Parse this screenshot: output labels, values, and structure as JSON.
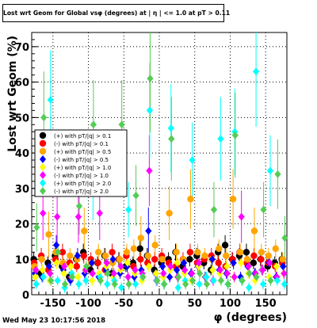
{
  "chart_data": {
    "type": "scatter",
    "title": "Lost wrt Geom for Global vsφ (degrees) at | η | <= 1.0 at pT > 0.11",
    "xlabel": "φ (degrees)",
    "ylabel": "Lost wrt Geom (%)",
    "xlim": [
      -180,
      180
    ],
    "ylim": [
      0,
      74
    ],
    "xticks": [
      "-150",
      "-100",
      "-50",
      "0",
      "50",
      "100",
      "150"
    ],
    "yticks": [
      "0",
      "10",
      "20",
      "30",
      "40",
      "50",
      "60",
      "70"
    ],
    "grid": true,
    "legend_position": "left",
    "series": [
      {
        "name": "(+) with pT/|q| > 0.1",
        "color": "#000000",
        "marker": "circle",
        "x": [
          -175,
          -165,
          -155,
          -145,
          -135,
          -125,
          -115,
          -105,
          -95,
          -85,
          -75,
          -65,
          -55,
          -45,
          -35,
          -25,
          -15,
          -5,
          5,
          15,
          25,
          35,
          45,
          55,
          65,
          75,
          85,
          95,
          105,
          115,
          125,
          135,
          145,
          155,
          165,
          175
        ],
        "y": [
          10,
          6,
          9,
          11,
          8,
          5,
          10,
          12,
          7,
          9,
          11,
          6,
          10,
          8,
          9,
          13,
          11,
          7,
          9,
          10,
          12,
          8,
          10,
          11,
          9,
          7,
          12,
          14,
          10,
          11,
          12,
          9,
          10,
          8,
          9,
          10
        ]
      },
      {
        "name": "(-) with pT/|q| > 0.1",
        "color": "#ff0000",
        "marker": "circle",
        "x": [
          -175,
          -165,
          -155,
          -145,
          -135,
          -125,
          -115,
          -105,
          -95,
          -85,
          -75,
          -65,
          -55,
          -45,
          -35,
          -25,
          -15,
          -5,
          5,
          15,
          25,
          35,
          45,
          55,
          65,
          75,
          85,
          95,
          105,
          115,
          125,
          135,
          145,
          155,
          165,
          175
        ],
        "y": [
          9,
          11,
          7,
          10,
          12,
          9,
          8,
          11,
          10,
          9,
          7,
          12,
          10,
          11,
          8,
          10,
          9,
          10,
          11,
          9,
          8,
          10,
          12,
          9,
          10,
          11,
          9,
          8,
          10,
          12,
          9,
          11,
          10,
          9,
          8,
          9
        ]
      },
      {
        "name": "(+) with pT/|q| > 0.5",
        "color": "#ffa500",
        "marker": "circle",
        "x": [
          -175,
          -165,
          -155,
          -145,
          -135,
          -125,
          -115,
          -105,
          -95,
          -85,
          -75,
          -65,
          -55,
          -45,
          -35,
          -25,
          -15,
          -5,
          5,
          15,
          25,
          35,
          45,
          55,
          65,
          75,
          85,
          95,
          105,
          115,
          125,
          135,
          145,
          155,
          165,
          175
        ],
        "y": [
          8,
          10,
          17,
          12,
          9,
          11,
          10,
          18,
          9,
          12,
          11,
          9,
          10,
          12,
          13,
          16,
          11,
          14,
          10,
          23,
          12,
          10,
          27,
          12,
          11,
          10,
          13,
          11,
          27,
          12,
          10,
          18,
          12,
          11,
          13,
          10
        ]
      },
      {
        "name": "(-) with pT/|q| > 0.5",
        "color": "#0000ff",
        "marker": "diamond",
        "x": [
          -175,
          -165,
          -155,
          -145,
          -135,
          -125,
          -115,
          -105,
          -95,
          -85,
          -75,
          -65,
          -55,
          -45,
          -35,
          -25,
          -15,
          -5,
          5,
          15,
          25,
          35,
          45,
          55,
          65,
          75,
          85,
          95,
          105,
          115,
          125,
          135,
          145,
          155,
          165,
          175
        ],
        "y": [
          6,
          5,
          8,
          14,
          7,
          4,
          11,
          6,
          9,
          5,
          7,
          10,
          6,
          8,
          5,
          7,
          18,
          6,
          8,
          5,
          7,
          9,
          6,
          8,
          5,
          10,
          7,
          6,
          9,
          5,
          8,
          6,
          7,
          9,
          5,
          8
        ]
      },
      {
        "name": "(+) with pT/|q| > 1.0",
        "color": "#ffff00",
        "marker": "diamond",
        "x": [
          -175,
          -165,
          -155,
          -145,
          -135,
          -125,
          -115,
          -105,
          -95,
          -85,
          -75,
          -65,
          -55,
          -45,
          -35,
          -25,
          -15,
          -5,
          5,
          15,
          25,
          35,
          45,
          55,
          65,
          75,
          85,
          95,
          105,
          115,
          125,
          135,
          145,
          155,
          165,
          175
        ],
        "y": [
          5,
          7,
          4,
          9,
          6,
          8,
          5,
          7,
          4,
          6,
          8,
          5,
          7,
          9,
          6,
          4,
          8,
          6,
          5,
          7,
          9,
          6,
          4,
          8,
          5,
          7,
          6,
          8,
          5,
          9,
          6,
          4,
          7,
          5,
          8,
          6
        ]
      },
      {
        "name": "(-) with pT/|q| > 1.0",
        "color": "#ff00ff",
        "marker": "diamond",
        "x": [
          -175,
          -165,
          -155,
          -145,
          -135,
          -125,
          -115,
          -105,
          -95,
          -85,
          -75,
          -65,
          -55,
          -45,
          -35,
          -25,
          -15,
          -5,
          5,
          15,
          25,
          35,
          45,
          55,
          65,
          75,
          85,
          95,
          105,
          115,
          125,
          135,
          145,
          155,
          165,
          175
        ],
        "y": [
          7,
          23,
          6,
          22,
          8,
          5,
          22,
          7,
          6,
          23,
          9,
          6,
          8,
          5,
          7,
          6,
          35,
          4,
          6,
          8,
          5,
          7,
          6,
          9,
          5,
          4,
          7,
          6,
          5,
          22,
          8,
          6,
          7,
          9,
          5,
          6
        ]
      },
      {
        "name": "(+) with pT/|q| > 2.0",
        "color": "#00ffff",
        "marker": "diamond",
        "x": [
          -175,
          -165,
          -155,
          -145,
          -135,
          -125,
          -115,
          -105,
          -95,
          -85,
          -75,
          -65,
          -55,
          -45,
          -35,
          -25,
          -15,
          -5,
          5,
          15,
          25,
          35,
          45,
          55,
          65,
          75,
          85,
          95,
          105,
          115,
          125,
          135,
          145,
          155,
          165,
          175
        ],
        "y": [
          3,
          5,
          55,
          4,
          2,
          6,
          3,
          4,
          30,
          5,
          3,
          4,
          2,
          24,
          3,
          5,
          52,
          4,
          3,
          47,
          2,
          4,
          38,
          3,
          5,
          4,
          44,
          3,
          46,
          4,
          2,
          63,
          3,
          35,
          4,
          3
        ]
      },
      {
        "name": "(-) with pT/|q| > 2.0",
        "color": "#55cc55",
        "marker": "diamond",
        "x": [
          -175,
          -165,
          -155,
          -145,
          -135,
          -125,
          -115,
          -105,
          -95,
          -85,
          -75,
          -65,
          -55,
          -45,
          -35,
          -25,
          -15,
          -5,
          5,
          15,
          25,
          35,
          45,
          55,
          65,
          75,
          85,
          95,
          105,
          115,
          125,
          135,
          145,
          155,
          165,
          175
        ],
        "y": [
          19,
          50,
          4,
          12,
          3,
          5,
          25,
          8,
          48,
          4,
          6,
          3,
          48,
          3,
          28,
          5,
          61,
          4,
          3,
          44,
          5,
          3,
          4,
          6,
          3,
          24,
          4,
          3,
          45,
          4,
          6,
          5,
          24,
          4,
          34,
          16
        ]
      }
    ]
  },
  "footer": {
    "timestamp": "Wed May 23 10:17:56 2018"
  }
}
